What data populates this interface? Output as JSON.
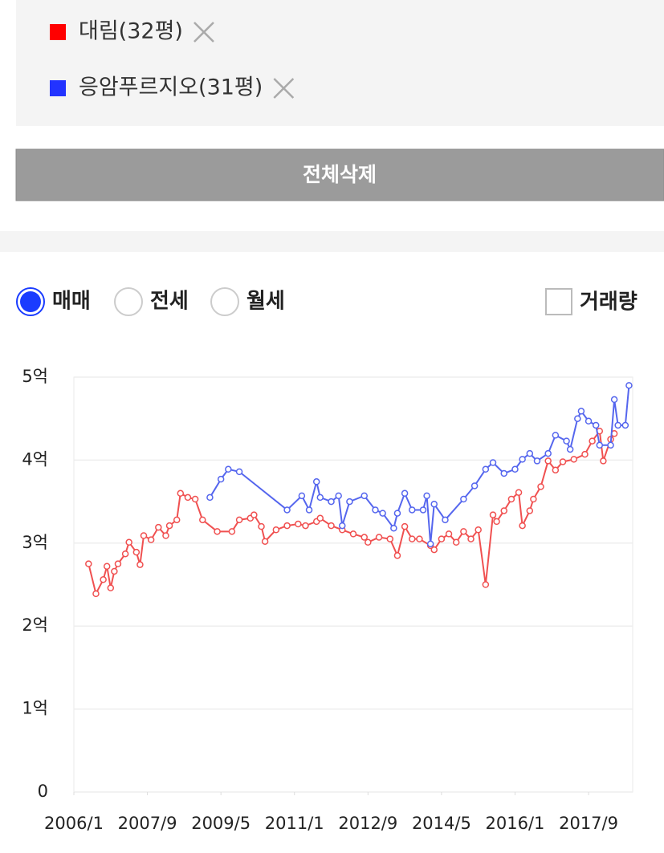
{
  "clear_button": "전체삭제",
  "trade_types": {
    "options": [
      "매매",
      "전세",
      "월세"
    ],
    "selected_index": 0
  },
  "volume_toggle": {
    "label": "거래량",
    "checked": false
  },
  "chart_data": {
    "type": "line",
    "xlim": [
      "2006/1",
      "2018/9"
    ],
    "xticks": [
      "2006/1",
      "2007/9",
      "2009/5",
      "2011/1",
      "2012/9",
      "2014/5",
      "2016/1",
      "2017/9"
    ],
    "ylim": [
      0,
      5
    ],
    "yticks": [
      0,
      {
        "value": 1,
        "label": "1억"
      },
      {
        "value": 2,
        "label": "2억"
      },
      {
        "value": 3,
        "label": "3억"
      },
      {
        "value": 4,
        "label": "4억"
      },
      {
        "value": 5,
        "label": "5억"
      }
    ],
    "grid": true,
    "series": [
      {
        "name": "대림(32평)",
        "color": "#ff0000",
        "line_color": "#f05050",
        "x": [
          "2006/5",
          "2006/7",
          "2006/9",
          "2006/10",
          "2006/11",
          "2006/12",
          "2007/1",
          "2007/3",
          "2007/4",
          "2007/6",
          "2007/7",
          "2007/8",
          "2007/10",
          "2007/12",
          "2008/2",
          "2008/3",
          "2008/5",
          "2008/6",
          "2008/8",
          "2008/10",
          "2008/12",
          "2009/4",
          "2009/8",
          "2009/10",
          "2010/1",
          "2010/2",
          "2010/4",
          "2010/5",
          "2010/8",
          "2010/11",
          "2011/2",
          "2011/4",
          "2011/7",
          "2011/8",
          "2011/11",
          "2012/2",
          "2012/5",
          "2012/8",
          "2012/9",
          "2012/12",
          "2013/3",
          "2013/5",
          "2013/7",
          "2013/9",
          "2013/11",
          "2014/2",
          "2014/3",
          "2014/5",
          "2014/7",
          "2014/9",
          "2014/11",
          "2015/1",
          "2015/3",
          "2015/5",
          "2015/7",
          "2015/8",
          "2015/10",
          "2015/12",
          "2016/2",
          "2016/3",
          "2016/5",
          "2016/6",
          "2016/8",
          "2016/10",
          "2016/12",
          "2017/2",
          "2017/5",
          "2017/8",
          "2017/10",
          "2017/12",
          "2018/1",
          "2018/3",
          "2018/4"
        ],
        "values": [
          2.75,
          2.39,
          2.56,
          2.72,
          2.46,
          2.66,
          2.75,
          2.87,
          3.01,
          2.89,
          2.74,
          3.09,
          3.04,
          3.19,
          3.09,
          3.21,
          3.28,
          3.6,
          3.55,
          3.53,
          3.28,
          3.14,
          3.14,
          3.28,
          3.3,
          3.34,
          3.2,
          3.02,
          3.16,
          3.21,
          3.23,
          3.21,
          3.26,
          3.3,
          3.21,
          3.16,
          3.11,
          3.07,
          3.01,
          3.07,
          3.05,
          2.85,
          3.2,
          3.05,
          3.05,
          2.97,
          2.92,
          3.05,
          3.11,
          3.01,
          3.14,
          3.05,
          3.16,
          2.5,
          3.34,
          3.26,
          3.39,
          3.53,
          3.61,
          3.21,
          3.39,
          3.53,
          3.68,
          3.99,
          3.88,
          3.98,
          4.01,
          4.07,
          4.23,
          4.35,
          3.99,
          4.25,
          4.32
        ]
      },
      {
        "name": "응암푸르지오(31평)",
        "color": "#2233ff",
        "line_color": "#5566ee",
        "x": [
          "2009/2",
          "2009/5",
          "2009/7",
          "2009/10",
          "2010/11",
          "2011/3",
          "2011/5",
          "2011/7",
          "2011/8",
          "2011/11",
          "2012/1",
          "2012/2",
          "2012/4",
          "2012/8",
          "2012/11",
          "2013/1",
          "2013/4",
          "2013/5",
          "2013/7",
          "2013/9",
          "2013/12",
          "2014/1",
          "2014/2",
          "2014/3",
          "2014/6",
          "2014/11",
          "2015/2",
          "2015/5",
          "2015/7",
          "2015/10",
          "2016/1",
          "2016/3",
          "2016/5",
          "2016/7",
          "2016/10",
          "2016/12",
          "2017/3",
          "2017/4",
          "2017/6",
          "2017/7",
          "2017/9",
          "2017/11",
          "2017/12",
          "2018/3",
          "2018/4",
          "2018/5",
          "2018/7",
          "2018/8"
        ],
        "values": [
          3.55,
          3.77,
          3.89,
          3.86,
          3.4,
          3.57,
          3.4,
          3.74,
          3.55,
          3.5,
          3.57,
          3.21,
          3.5,
          3.57,
          3.4,
          3.36,
          3.18,
          3.36,
          3.6,
          3.4,
          3.4,
          3.57,
          2.99,
          3.47,
          3.28,
          3.53,
          3.69,
          3.89,
          3.97,
          3.84,
          3.89,
          4.01,
          4.08,
          3.99,
          4.08,
          4.3,
          4.23,
          4.13,
          4.5,
          4.59,
          4.47,
          4.42,
          4.18,
          4.18,
          4.73,
          4.42,
          4.42,
          4.9
        ]
      }
    ]
  }
}
